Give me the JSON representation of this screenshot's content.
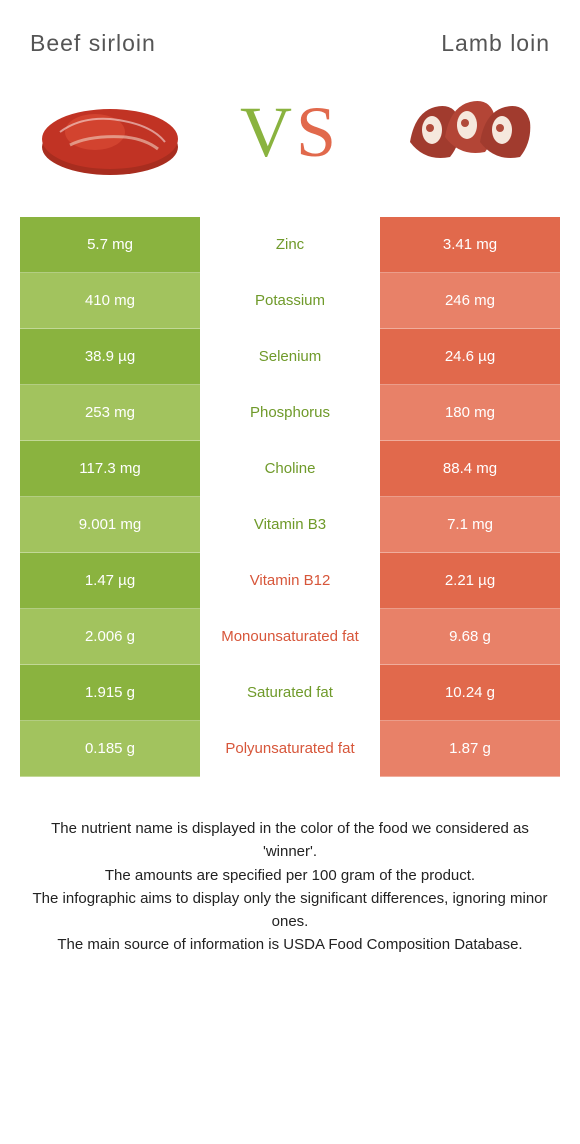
{
  "header": {
    "left_title": "Beef sirloin",
    "right_title": "Lamb loin",
    "vs_v": "V",
    "vs_s": "S"
  },
  "colors": {
    "left": "#8ab33f",
    "left_light": "#a2c35e",
    "left_text": "#6f9a2a",
    "right": "#e1694c",
    "right_light": "#e88168",
    "right_text": "#d7563a",
    "title": "#555555",
    "body_text": "#333333"
  },
  "nutrients": [
    {
      "name": "Zinc",
      "left": "5.7 mg",
      "right": "3.41 mg",
      "winner": "left"
    },
    {
      "name": "Potassium",
      "left": "410 mg",
      "right": "246 mg",
      "winner": "left"
    },
    {
      "name": "Selenium",
      "left": "38.9 µg",
      "right": "24.6 µg",
      "winner": "left"
    },
    {
      "name": "Phosphorus",
      "left": "253 mg",
      "right": "180 mg",
      "winner": "left"
    },
    {
      "name": "Choline",
      "left": "117.3 mg",
      "right": "88.4 mg",
      "winner": "left"
    },
    {
      "name": "Vitamin B3",
      "left": "9.001 mg",
      "right": "7.1 mg",
      "winner": "left"
    },
    {
      "name": "Vitamin B12",
      "left": "1.47 µg",
      "right": "2.21 µg",
      "winner": "right"
    },
    {
      "name": "Monounsaturated fat",
      "left": "2.006 g",
      "right": "9.68 g",
      "winner": "right"
    },
    {
      "name": "Saturated fat",
      "left": "1.915 g",
      "right": "10.24 g",
      "winner": "left"
    },
    {
      "name": "Polyunsaturated fat",
      "left": "0.185 g",
      "right": "1.87 g",
      "winner": "right"
    }
  ],
  "caption": {
    "line1": "The nutrient name is displayed in the color of the food we considered as 'winner'.",
    "line2": "The amounts are specified per 100 gram of the product.",
    "line3": "The infographic aims to display only the significant differences, ignoring minor ones.",
    "line4": "The main source of information is USDA Food Composition Database."
  }
}
